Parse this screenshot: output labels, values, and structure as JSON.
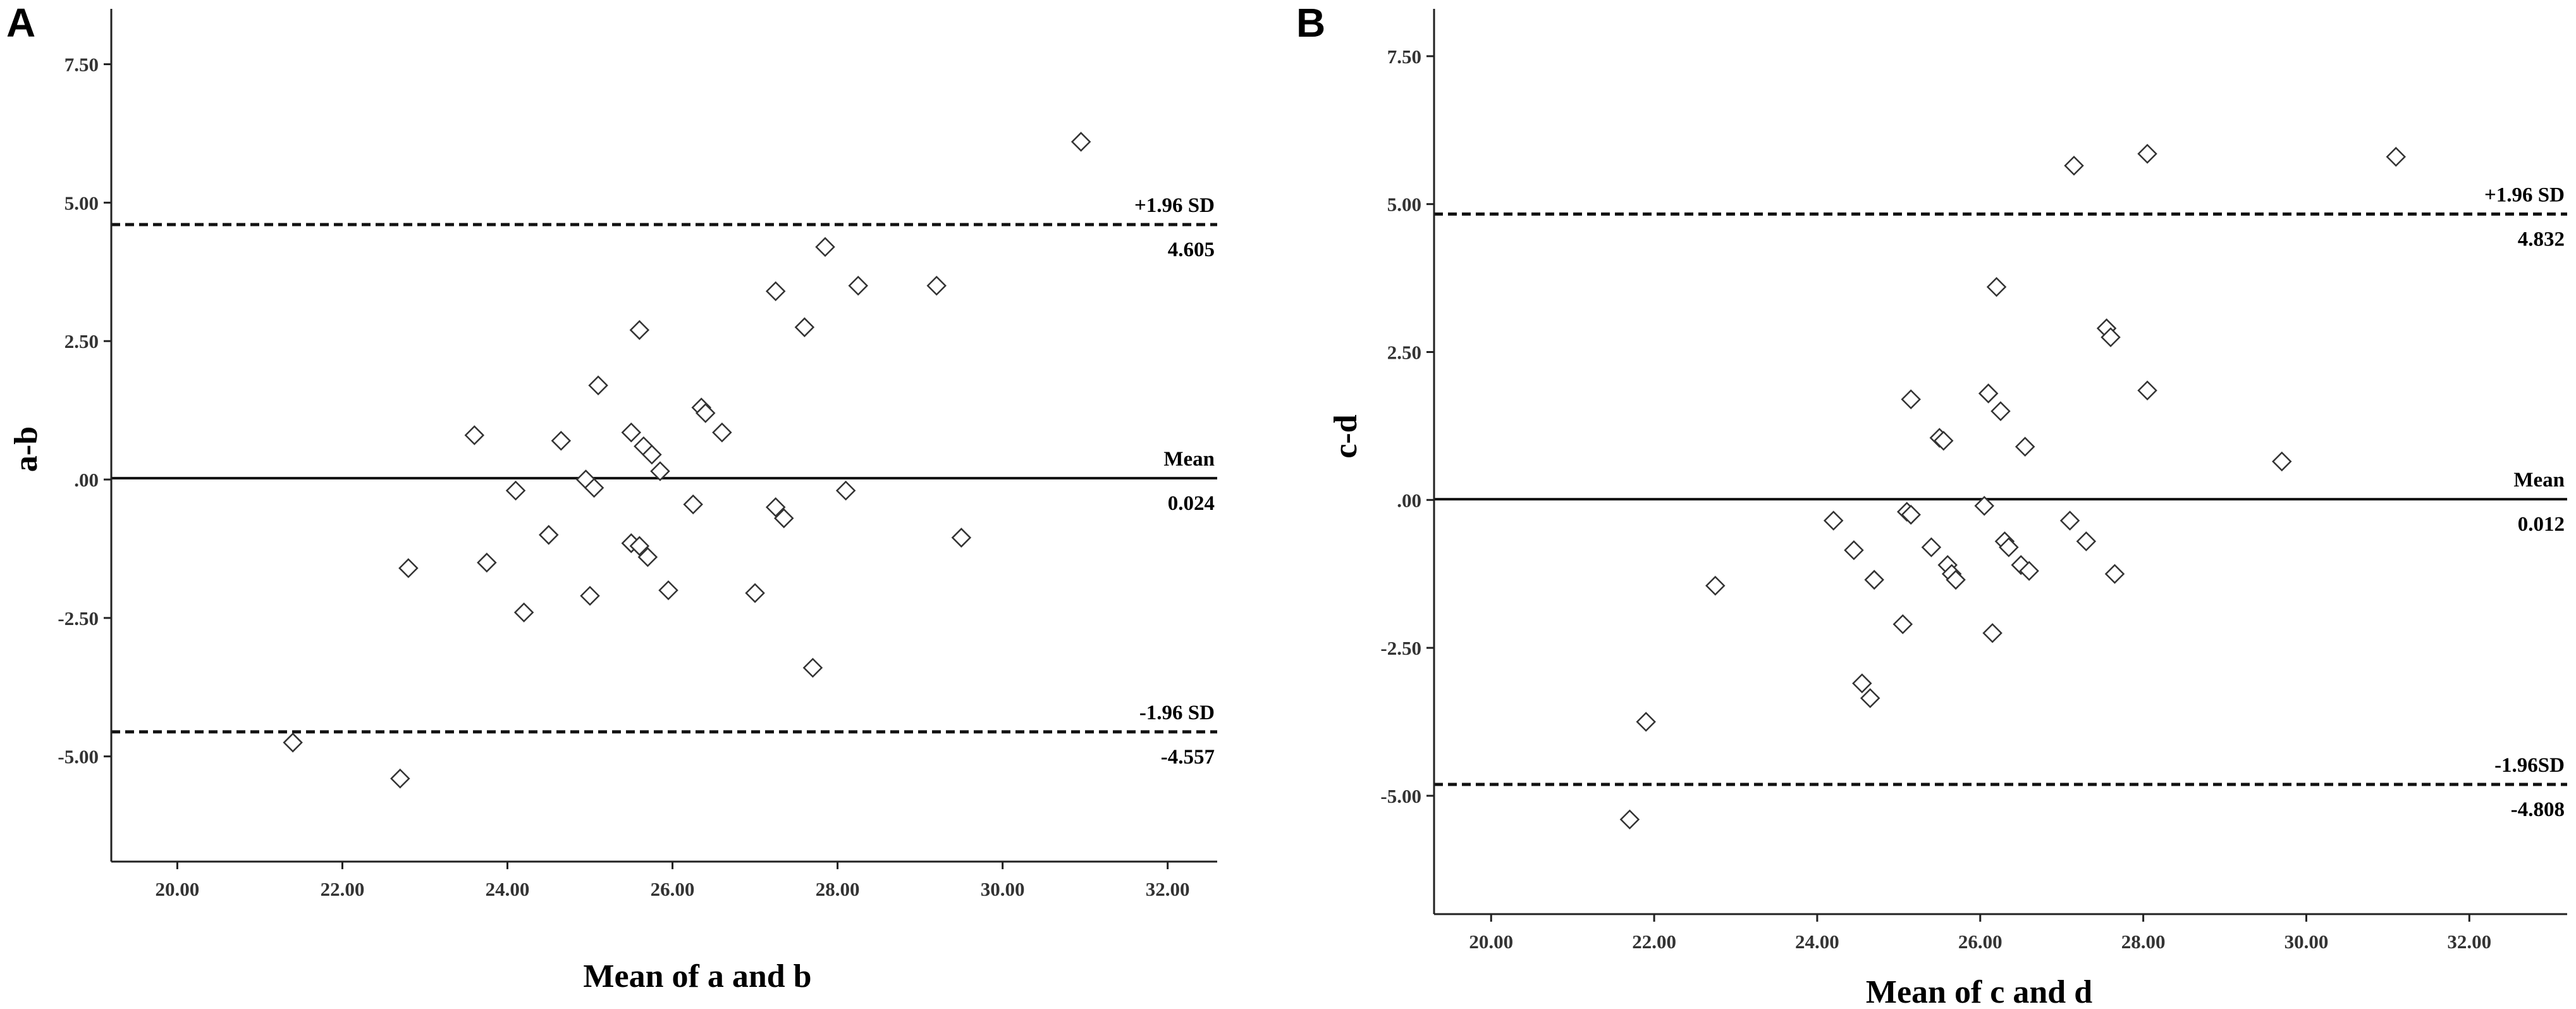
{
  "chart_data": [
    {
      "type": "scatter",
      "panel_label": "A",
      "xlabel": "Mean of a and b",
      "ylabel": "a-b",
      "xlim": [
        19.2,
        32.6
      ],
      "ylim": [
        -6.9,
        8.5
      ],
      "xticks": [
        20,
        22,
        24,
        26,
        28,
        30,
        32
      ],
      "xtick_labels": [
        "20.00",
        "22.00",
        "24.00",
        "26.00",
        "28.00",
        "30.00",
        "32.00"
      ],
      "yticks": [
        7.5,
        5.0,
        2.5,
        0,
        -2.5,
        -5.0
      ],
      "ytick_labels": [
        "7.50",
        "5.00",
        "2.50",
        ".00",
        "-2.50",
        "-5.00"
      ],
      "reference_lines": [
        {
          "name": "+1.96 SD",
          "value": 4.605,
          "value_label": "4.605",
          "style": "dashed"
        },
        {
          "name": "Mean",
          "value": 0.024,
          "value_label": "0.024",
          "style": "solid"
        },
        {
          "name": "-1.96 SD",
          "value": -4.557,
          "value_label": "-4.557",
          "style": "dashed"
        }
      ],
      "points": [
        {
          "x": 21.4,
          "y": -4.75
        },
        {
          "x": 22.7,
          "y": -5.4
        },
        {
          "x": 22.8,
          "y": -1.6
        },
        {
          "x": 23.6,
          "y": 0.8
        },
        {
          "x": 23.75,
          "y": -1.5
        },
        {
          "x": 24.1,
          "y": -0.2
        },
        {
          "x": 24.2,
          "y": -2.4
        },
        {
          "x": 24.5,
          "y": -1.0
        },
        {
          "x": 24.65,
          "y": 0.7
        },
        {
          "x": 24.95,
          "y": 0.0
        },
        {
          "x": 25.0,
          "y": -2.1
        },
        {
          "x": 25.05,
          "y": -0.15
        },
        {
          "x": 25.1,
          "y": 1.7
        },
        {
          "x": 25.5,
          "y": 0.85
        },
        {
          "x": 25.5,
          "y": -1.15
        },
        {
          "x": 25.6,
          "y": -1.2
        },
        {
          "x": 25.6,
          "y": 2.7
        },
        {
          "x": 25.65,
          "y": 0.6
        },
        {
          "x": 25.7,
          "y": -1.4
        },
        {
          "x": 25.75,
          "y": 0.45
        },
        {
          "x": 25.85,
          "y": 0.15
        },
        {
          "x": 25.95,
          "y": -2.0
        },
        {
          "x": 26.25,
          "y": -0.45
        },
        {
          "x": 26.35,
          "y": 1.3
        },
        {
          "x": 26.4,
          "y": 1.2
        },
        {
          "x": 26.6,
          "y": 0.85
        },
        {
          "x": 27.0,
          "y": -2.05
        },
        {
          "x": 27.25,
          "y": 3.4
        },
        {
          "x": 27.25,
          "y": -0.5
        },
        {
          "x": 27.35,
          "y": -0.7
        },
        {
          "x": 27.6,
          "y": 2.75
        },
        {
          "x": 27.7,
          "y": -3.4
        },
        {
          "x": 27.85,
          "y": 4.2
        },
        {
          "x": 28.1,
          "y": -0.2
        },
        {
          "x": 28.25,
          "y": 3.5
        },
        {
          "x": 29.2,
          "y": 3.5
        },
        {
          "x": 29.5,
          "y": -1.05
        },
        {
          "x": 30.95,
          "y": 6.1
        }
      ]
    },
    {
      "type": "scatter",
      "panel_label": "B",
      "xlabel": "Mean of c and d",
      "ylabel": "c-d",
      "xlim": [
        19.3,
        33.2
      ],
      "ylim": [
        -7.0,
        8.3
      ],
      "xticks": [
        20,
        22,
        24,
        26,
        28,
        30,
        32
      ],
      "xtick_labels": [
        "20.00",
        "22.00",
        "24.00",
        "26.00",
        "28.00",
        "30.00",
        "32.00"
      ],
      "yticks": [
        7.5,
        5.0,
        2.5,
        0,
        -2.5,
        -5.0
      ],
      "ytick_labels": [
        "7.50",
        "5.00",
        "2.50",
        ".00",
        "-2.50",
        "-5.00"
      ],
      "reference_lines": [
        {
          "name": "+1.96 SD",
          "value": 4.832,
          "value_label": "4.832",
          "style": "dashed"
        },
        {
          "name": "Mean",
          "value": 0.012,
          "value_label": "0.012",
          "style": "solid"
        },
        {
          "name": "-1.96SD",
          "value": -4.808,
          "value_label": "-4.808",
          "style": "dashed"
        }
      ],
      "points": [
        {
          "x": 21.7,
          "y": -5.4
        },
        {
          "x": 21.9,
          "y": -3.75
        },
        {
          "x": 22.75,
          "y": -1.45
        },
        {
          "x": 24.2,
          "y": -0.35
        },
        {
          "x": 24.45,
          "y": -0.85
        },
        {
          "x": 24.55,
          "y": -3.1
        },
        {
          "x": 24.65,
          "y": -3.35
        },
        {
          "x": 24.7,
          "y": -1.35
        },
        {
          "x": 25.05,
          "y": -2.1
        },
        {
          "x": 25.1,
          "y": -0.2
        },
        {
          "x": 25.15,
          "y": -0.25
        },
        {
          "x": 25.15,
          "y": 1.7
        },
        {
          "x": 25.4,
          "y": -0.8
        },
        {
          "x": 25.5,
          "y": 1.05
        },
        {
          "x": 25.55,
          "y": 1.0
        },
        {
          "x": 25.6,
          "y": -1.1
        },
        {
          "x": 25.65,
          "y": -1.25
        },
        {
          "x": 25.7,
          "y": -1.35
        },
        {
          "x": 26.05,
          "y": -0.1
        },
        {
          "x": 26.1,
          "y": 1.8
        },
        {
          "x": 26.15,
          "y": -2.25
        },
        {
          "x": 26.2,
          "y": 3.6
        },
        {
          "x": 26.25,
          "y": 1.5
        },
        {
          "x": 26.3,
          "y": -0.7
        },
        {
          "x": 26.35,
          "y": -0.8
        },
        {
          "x": 26.5,
          "y": -1.1
        },
        {
          "x": 26.55,
          "y": 0.9
        },
        {
          "x": 26.6,
          "y": -1.2
        },
        {
          "x": 27.1,
          "y": -0.35
        },
        {
          "x": 27.15,
          "y": 5.65
        },
        {
          "x": 27.3,
          "y": -0.7
        },
        {
          "x": 27.55,
          "y": 2.9
        },
        {
          "x": 27.6,
          "y": 2.75
        },
        {
          "x": 27.65,
          "y": -1.25
        },
        {
          "x": 28.05,
          "y": 5.85
        },
        {
          "x": 28.05,
          "y": 1.85
        },
        {
          "x": 29.7,
          "y": 0.65
        },
        {
          "x": 31.1,
          "y": 5.8
        }
      ]
    }
  ]
}
